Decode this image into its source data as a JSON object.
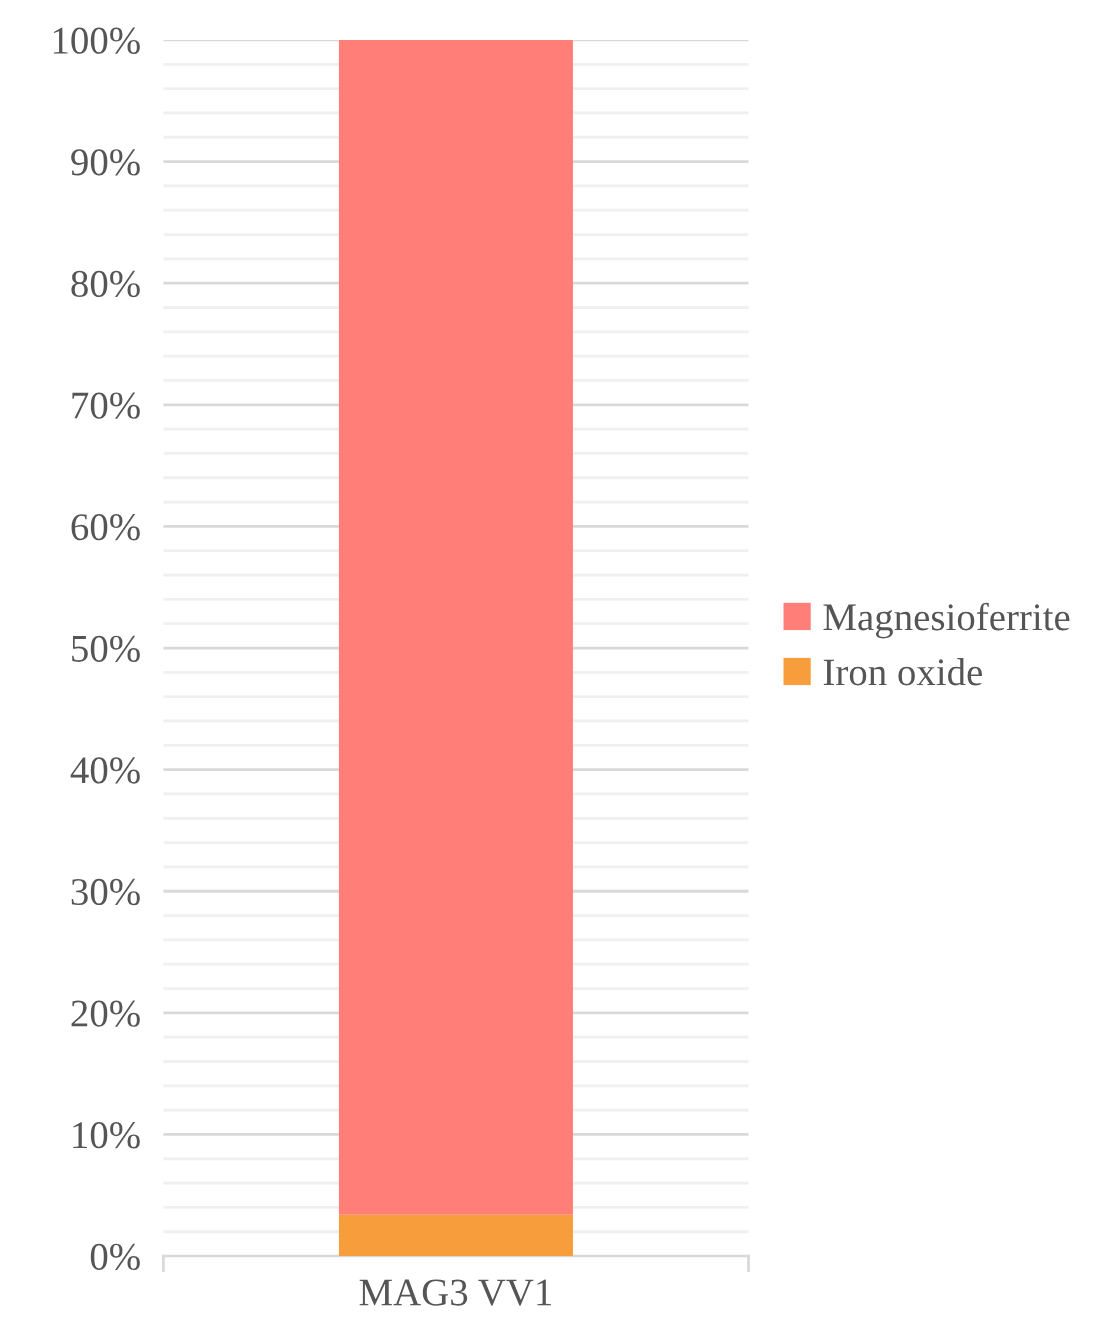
{
  "chart_data": {
    "type": "bar",
    "stacked": true,
    "categories": [
      "MAG3 VV1"
    ],
    "series": [
      {
        "name": "Iron oxide",
        "color": "#f79d3c",
        "values": [
          3.4
        ]
      },
      {
        "name": "Magnesioferrite",
        "color": "#ff7f78",
        "values": [
          96.6
        ]
      }
    ],
    "ylim": [
      0,
      100
    ],
    "yticks": [
      {
        "value": 0,
        "label": "0%"
      },
      {
        "value": 2,
        "label": null
      },
      {
        "value": 4,
        "label": null
      },
      {
        "value": 6,
        "label": null
      },
      {
        "value": 8,
        "label": null
      },
      {
        "value": 10,
        "label": "10%"
      },
      {
        "value": 12,
        "label": null
      },
      {
        "value": 14,
        "label": null
      },
      {
        "value": 16,
        "label": null
      },
      {
        "value": 18,
        "label": null
      },
      {
        "value": 20,
        "label": "20%"
      },
      {
        "value": 22,
        "label": null
      },
      {
        "value": 24,
        "label": null
      },
      {
        "value": 26,
        "label": null
      },
      {
        "value": 28,
        "label": null
      },
      {
        "value": 30,
        "label": "30%"
      },
      {
        "value": 32,
        "label": null
      },
      {
        "value": 34,
        "label": null
      },
      {
        "value": 36,
        "label": null
      },
      {
        "value": 38,
        "label": null
      },
      {
        "value": 40,
        "label": "40%"
      },
      {
        "value": 42,
        "label": null
      },
      {
        "value": 44,
        "label": null
      },
      {
        "value": 46,
        "label": null
      },
      {
        "value": 48,
        "label": null
      },
      {
        "value": 50,
        "label": "50%"
      },
      {
        "value": 52,
        "label": null
      },
      {
        "value": 54,
        "label": null
      },
      {
        "value": 56,
        "label": null
      },
      {
        "value": 58,
        "label": null
      },
      {
        "value": 60,
        "label": "60%"
      },
      {
        "value": 62,
        "label": null
      },
      {
        "value": 64,
        "label": null
      },
      {
        "value": 66,
        "label": null
      },
      {
        "value": 68,
        "label": null
      },
      {
        "value": 70,
        "label": "70%"
      },
      {
        "value": 72,
        "label": null
      },
      {
        "value": 74,
        "label": null
      },
      {
        "value": 76,
        "label": null
      },
      {
        "value": 78,
        "label": null
      },
      {
        "value": 80,
        "label": "80%"
      },
      {
        "value": 82,
        "label": null
      },
      {
        "value": 84,
        "label": null
      },
      {
        "value": 86,
        "label": null
      },
      {
        "value": 88,
        "label": null
      },
      {
        "value": 90,
        "label": "90%"
      },
      {
        "value": 92,
        "label": null
      },
      {
        "value": 94,
        "label": null
      },
      {
        "value": 96,
        "label": null
      },
      {
        "value": 98,
        "label": null
      },
      {
        "value": 100,
        "label": "100%"
      }
    ],
    "grid": "y",
    "legend": "right"
  }
}
